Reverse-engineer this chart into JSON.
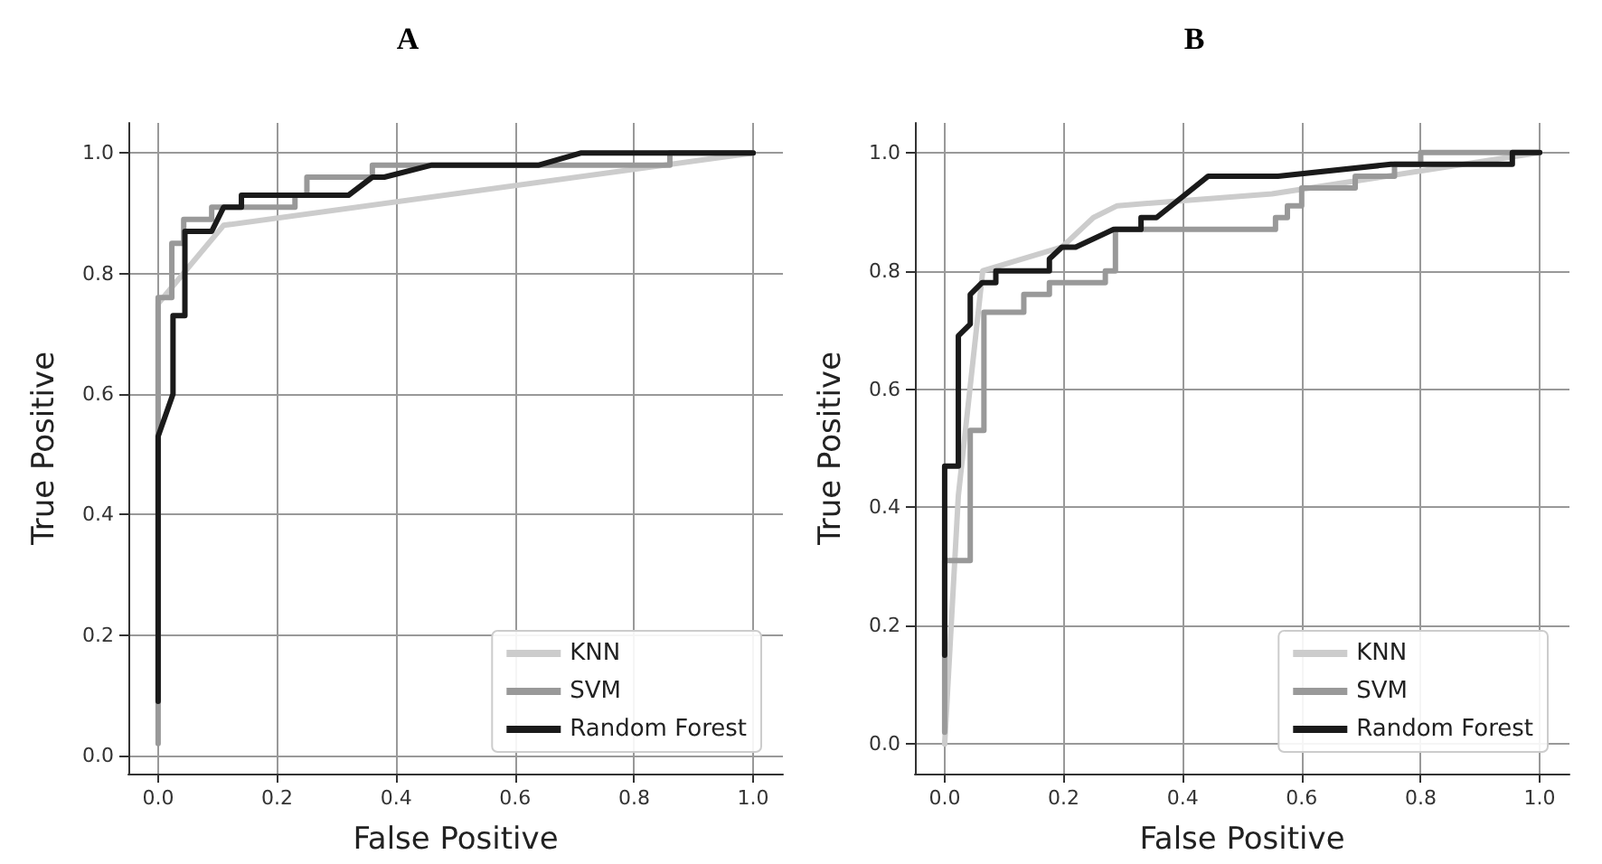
{
  "chart_data": [
    {
      "type": "line",
      "title": "A",
      "xlabel": "False Positive",
      "ylabel": "True Positive",
      "xlim": [
        -0.05,
        1.05
      ],
      "ylim": [
        -0.03,
        1.05
      ],
      "xticks": [
        {
          "value": 0,
          "label": "0.0"
        },
        {
          "value": 0.2,
          "label": "0.2"
        },
        {
          "value": 0.4,
          "label": "0.4"
        },
        {
          "value": 0.6,
          "label": "0.6"
        },
        {
          "value": 0.8,
          "label": "0.8"
        },
        {
          "value": 1,
          "label": "1.0"
        }
      ],
      "yticks": [
        {
          "value": 0,
          "label": "0.0"
        },
        {
          "value": 0.2,
          "label": "0.2"
        },
        {
          "value": 0.4,
          "label": "0.4"
        },
        {
          "value": 0.6,
          "label": "0.6"
        },
        {
          "value": 0.8,
          "label": "0.8"
        },
        {
          "value": 1,
          "label": "1.0"
        }
      ],
      "grid": true,
      "legend": "bottom right",
      "line_style": "solid",
      "marker": "none",
      "series": [
        {
          "name": "KNN",
          "color": "#cccccc",
          "x": [
            0,
            0,
            0.11,
            1
          ],
          "values": [
            0.55,
            0.75,
            0.88,
            1
          ]
        },
        {
          "name": "SVM",
          "color": "#999999",
          "x": [
            0,
            0,
            0.023,
            0.023,
            0.043,
            0.043,
            0.09,
            0.09,
            0.23,
            0.23,
            0.25,
            0.25,
            0.36,
            0.36,
            0.86,
            0.86,
            1
          ],
          "values": [
            0.02,
            0.76,
            0.76,
            0.85,
            0.85,
            0.89,
            0.89,
            0.91,
            0.91,
            0.93,
            0.93,
            0.96,
            0.96,
            0.98,
            0.98,
            1,
            1
          ]
        },
        {
          "name": "Random Forest",
          "color": "#1a1a1a",
          "x": [
            0,
            0,
            0.025,
            0.025,
            0.045,
            0.045,
            0.09,
            0.11,
            0.14,
            0.14,
            0.32,
            0.36,
            0.38,
            0.46,
            0.64,
            0.71,
            1
          ],
          "values": [
            0.09,
            0.53,
            0.6,
            0.73,
            0.73,
            0.87,
            0.87,
            0.91,
            0.91,
            0.93,
            0.93,
            0.96,
            0.96,
            0.98,
            0.98,
            1,
            1
          ]
        }
      ]
    },
    {
      "type": "line",
      "title": "B",
      "xlabel": "False Positive",
      "ylabel": "True Positive",
      "xlim": [
        -0.05,
        1.05
      ],
      "ylim": [
        -0.05,
        1.05
      ],
      "xticks": [
        {
          "value": 0,
          "label": "0.0"
        },
        {
          "value": 0.2,
          "label": "0.2"
        },
        {
          "value": 0.4,
          "label": "0.4"
        },
        {
          "value": 0.6,
          "label": "0.6"
        },
        {
          "value": 0.8,
          "label": "0.8"
        },
        {
          "value": 1,
          "label": "1.0"
        }
      ],
      "yticks": [
        {
          "value": 0,
          "label": "0.0"
        },
        {
          "value": 0.2,
          "label": "0.2"
        },
        {
          "value": 0.4,
          "label": "0.4"
        },
        {
          "value": 0.6,
          "label": "0.6"
        },
        {
          "value": 0.8,
          "label": "0.8"
        },
        {
          "value": 1,
          "label": "1.0"
        }
      ],
      "grid": true,
      "legend": "bottom right",
      "line_style": "solid",
      "marker": "none",
      "series": [
        {
          "name": "KNN",
          "color": "#cccccc",
          "x": [
            0,
            0.023,
            0.064,
            0.197,
            0.25,
            0.29,
            0.55,
            1
          ],
          "values": [
            0,
            0.42,
            0.8,
            0.84,
            0.89,
            0.91,
            0.93,
            1
          ]
        },
        {
          "name": "SVM",
          "color": "#999999",
          "x": [
            0,
            0,
            0.043,
            0.043,
            0.066,
            0.066,
            0.133,
            0.133,
            0.176,
            0.176,
            0.27,
            0.27,
            0.287,
            0.287,
            0.556,
            0.556,
            0.576,
            0.576,
            0.6,
            0.6,
            0.69,
            0.69,
            0.756,
            0.756,
            0.8,
            0.8,
            1
          ],
          "values": [
            0.02,
            0.31,
            0.31,
            0.53,
            0.53,
            0.73,
            0.73,
            0.76,
            0.76,
            0.78,
            0.78,
            0.8,
            0.8,
            0.87,
            0.87,
            0.89,
            0.89,
            0.91,
            0.91,
            0.94,
            0.94,
            0.96,
            0.96,
            0.98,
            0.98,
            1,
            1
          ]
        },
        {
          "name": "Random Forest",
          "color": "#1a1a1a",
          "x": [
            0,
            0,
            0.023,
            0.023,
            0.043,
            0.043,
            0.063,
            0.086,
            0.086,
            0.176,
            0.176,
            0.197,
            0.22,
            0.284,
            0.33,
            0.33,
            0.356,
            0.443,
            0.56,
            0.75,
            0.954,
            0.954,
            1
          ],
          "values": [
            0.15,
            0.47,
            0.47,
            0.69,
            0.71,
            0.76,
            0.78,
            0.78,
            0.8,
            0.8,
            0.82,
            0.84,
            0.84,
            0.87,
            0.87,
            0.89,
            0.89,
            0.96,
            0.96,
            0.98,
            0.98,
            1,
            1
          ]
        }
      ]
    }
  ]
}
